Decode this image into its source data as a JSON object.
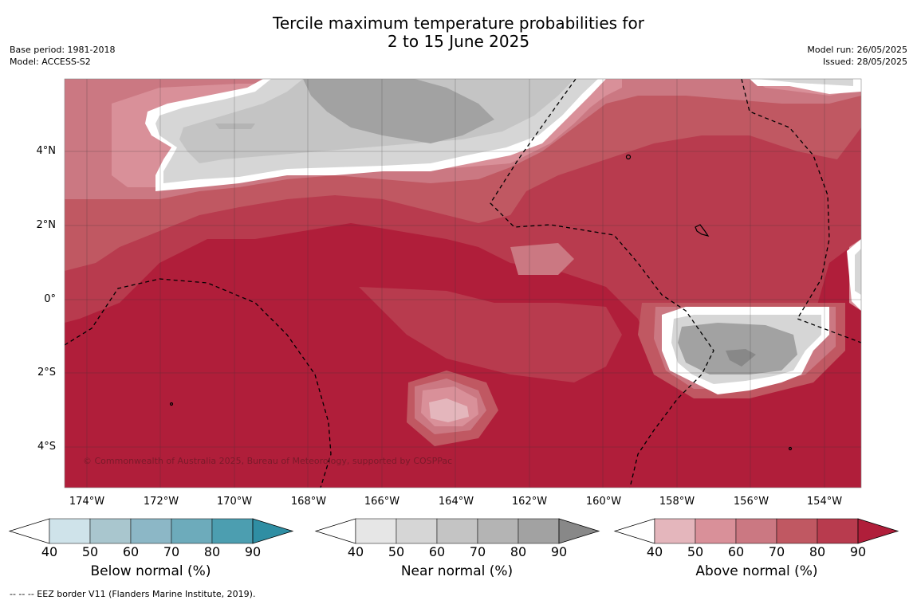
{
  "title_line1": "Tercile maximum temperature probabilities for",
  "title_line2": "2 to 15 June 2025",
  "meta_left": [
    "Base period: 1981-2018",
    "Model: ACCESS-S2"
  ],
  "meta_right": [
    "Model run: 26/05/2025",
    "Issued: 28/05/2025"
  ],
  "copyright": "© Commonwealth of Australia 2025, Bureau of Meteorology, supported by COSPPac",
  "lat_labels": [
    "4°N",
    "2°N",
    "0°",
    "2°S",
    "4°S"
  ],
  "lon_labels": [
    "174°W",
    "172°W",
    "170°W",
    "168°W",
    "166°W",
    "164°W",
    "162°W",
    "160°W",
    "158°W",
    "156°W",
    "154°W"
  ],
  "colorbars": [
    {
      "label": "Below normal (%)",
      "colors": [
        "#cfe3ea",
        "#a9c6ce",
        "#8cb7c6",
        "#6dabbb",
        "#4c9eb0",
        "#2f8ea3"
      ]
    },
    {
      "label": "Near normal (%)",
      "colors": [
        "#e6e6e6",
        "#d6d6d6",
        "#c4c4c4",
        "#b4b4b4",
        "#a2a2a2",
        "#888888"
      ]
    },
    {
      "label": "Above normal (%)",
      "colors": [
        "#e4b6bc",
        "#d99099",
        "#cb7882",
        "#c05862",
        "#b83b4e",
        "#b01e3a"
      ]
    }
  ],
  "colorbar_ticks": [
    "40",
    "50",
    "60",
    "70",
    "80",
    "90"
  ],
  "footnote": "--  --  -- EEZ border V11 (Flanders Marine Institute, 2019)."
}
